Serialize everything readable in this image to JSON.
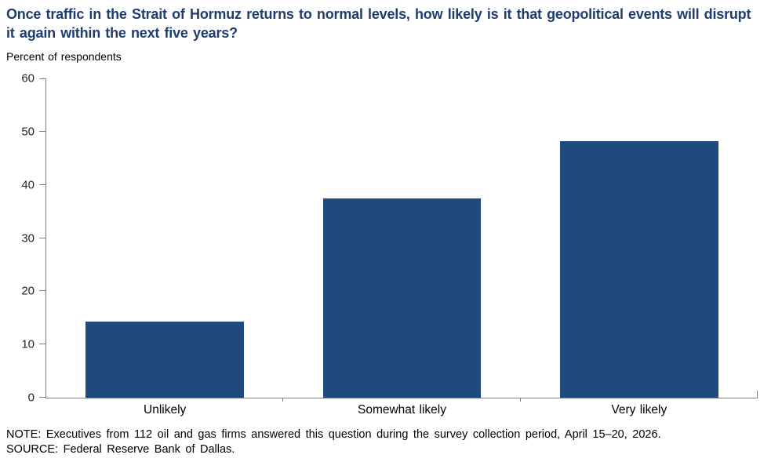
{
  "title": "Once traffic in the Strait of Hormuz returns to normal levels, how likely is it that geopolitical events will disrupt it again within the next five years?",
  "subtitle": "Percent of respondents",
  "note": "NOTE: Executives from 112 oil and gas firms answered this question during the survey collection period, April 15–20, 2026.",
  "source": "SOURCE: Federal Reserve Bank of Dallas.",
  "colors": {
    "bar": "#1f4b7c",
    "title_text": "#1e3c6e",
    "axis": "#808080",
    "tick_label": "#262626"
  },
  "chart_data": {
    "type": "bar",
    "categories": [
      "Unlikely",
      "Somewhat likely",
      "Very likely"
    ],
    "values": [
      14.3,
      37.5,
      48.2
    ],
    "title": "Once traffic in the Strait of Hormuz returns to normal levels, how likely is it that geopolitical events will disrupt it again within the next five years?",
    "xlabel": "",
    "ylabel": "Percent of respondents",
    "ylim": [
      0,
      60
    ],
    "yticks": [
      0,
      10,
      20,
      30,
      40,
      50,
      60
    ],
    "grid": false,
    "legend": "none",
    "bar_gap_fraction": 0.3333
  }
}
